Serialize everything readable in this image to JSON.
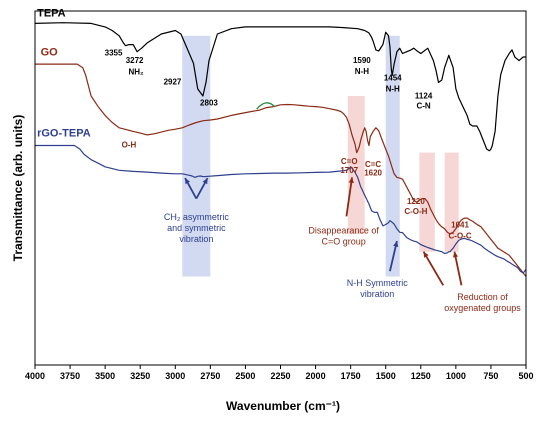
{
  "chart_data": {
    "type": "line",
    "xlabel": "Wavenumber (cm⁻¹)",
    "ylabel": "Transmittance (arb. units)",
    "xlim": [
      4000,
      500
    ],
    "x_ticks": [
      "4000",
      "3750",
      "3500",
      "3250",
      "3000",
      "2750",
      "2500",
      "2250",
      "2000",
      "1750",
      "1500",
      "1250",
      "1000",
      "750",
      "500"
    ],
    "ylim": [
      0,
      100
    ],
    "grid": false,
    "colors": {
      "tepa": "#000000",
      "go": "#8b2a14",
      "rgo": "#2e3f8f",
      "band_blue": "#c9d3ee",
      "band_red": "#f6cfcf"
    },
    "series": [
      {
        "name": "TEPA",
        "key": "tepa",
        "x": [
          4000,
          3800,
          3600,
          3500,
          3450,
          3400,
          3370,
          3355,
          3330,
          3300,
          3272,
          3240,
          3200,
          3100,
          3000,
          2960,
          2927,
          2900,
          2870,
          2840,
          2803,
          2780,
          2760,
          2700,
          2600,
          2500,
          2400,
          2300,
          2200,
          2100,
          2000,
          1900,
          1800,
          1700,
          1650,
          1620,
          1600,
          1590,
          1570,
          1550,
          1520,
          1500,
          1480,
          1470,
          1460,
          1454,
          1440,
          1420,
          1400,
          1380,
          1350,
          1320,
          1300,
          1280,
          1250,
          1200,
          1160,
          1140,
          1124,
          1100,
          1080,
          1050,
          1020,
          1000,
          980,
          950,
          920,
          900,
          880,
          850,
          830,
          800,
          780,
          760,
          750,
          740,
          720,
          700,
          680,
          650,
          620,
          600,
          580,
          550,
          520,
          500
        ],
        "y": [
          96.5,
          96.7,
          96.5,
          95.5,
          94.5,
          93,
          91,
          90.2,
          90.5,
          90.5,
          88.5,
          89.5,
          91,
          93.5,
          94.5,
          93.5,
          90.5,
          88,
          85.2,
          78,
          76,
          80,
          86,
          93.5,
          95,
          95.5,
          95.5,
          95.5,
          95.5,
          95.5,
          95.5,
          95.5,
          95.3,
          95,
          94.5,
          93.8,
          92.5,
          91.5,
          89,
          88.7,
          90.5,
          94,
          93,
          90,
          83.5,
          81.8,
          85,
          88.5,
          89.5,
          88,
          88.5,
          89,
          89.5,
          88.8,
          88,
          89.5,
          86,
          83,
          79.8,
          80.5,
          84,
          87.5,
          84,
          78,
          75.5,
          73,
          70.5,
          68,
          67.5,
          67.5,
          66,
          63,
          61,
          60.5,
          61,
          62,
          66,
          76,
          82,
          86,
          88,
          89,
          87,
          86,
          87,
          87
        ]
      },
      {
        "name": "GO",
        "key": "go",
        "x": [
          4000,
          3850,
          3750,
          3700,
          3680,
          3660,
          3640,
          3620,
          3600,
          3550,
          3500,
          3450,
          3400,
          3350,
          3300,
          3250,
          3200,
          3150,
          3100,
          3050,
          3000,
          2950,
          2900,
          2850,
          2800,
          2750,
          2700,
          2600,
          2500,
          2400,
          2350,
          2300,
          2250,
          2200,
          2150,
          2100,
          2050,
          2000,
          1950,
          1900,
          1850,
          1820,
          1800,
          1780,
          1760,
          1740,
          1720,
          1707,
          1690,
          1675,
          1660,
          1650,
          1640,
          1630,
          1620,
          1610,
          1590,
          1570,
          1550,
          1530,
          1500,
          1480,
          1460,
          1440,
          1420,
          1400,
          1380,
          1360,
          1340,
          1320,
          1300,
          1280,
          1260,
          1240,
          1220,
          1200,
          1180,
          1160,
          1140,
          1120,
          1100,
          1080,
          1060,
          1041,
          1020,
          1000,
          980,
          960,
          940,
          920,
          900,
          880,
          860,
          840,
          820,
          800,
          780,
          760,
          740,
          720,
          700,
          680,
          660,
          640,
          620,
          600,
          580,
          560,
          540,
          520,
          500
        ],
        "y": [
          85,
          85,
          85,
          85,
          84.5,
          84,
          82,
          79,
          76,
          73,
          70.5,
          68.5,
          67,
          66.5,
          66,
          65.5,
          65,
          65.3,
          65.8,
          66.3,
          66.6,
          67,
          67.8,
          68.5,
          69,
          69.2,
          69.5,
          70.5,
          71.3,
          72,
          72.7,
          73,
          73.5,
          73.6,
          73.5,
          73.3,
          73.1,
          73,
          72.8,
          72.4,
          72,
          71.6,
          71,
          70,
          68,
          65,
          62.5,
          60,
          61.5,
          64,
          66,
          67,
          66,
          63.5,
          62,
          64.5,
          66,
          67,
          66.2,
          64,
          61,
          59,
          56.5,
          54,
          53,
          52.8,
          52.5,
          51,
          49.5,
          48,
          46.5,
          46,
          46.6,
          47,
          47,
          46,
          44,
          42.5,
          41,
          39.8,
          39,
          38.5,
          37.5,
          37,
          37.5,
          38.5,
          40,
          41,
          41.5,
          41.5,
          41,
          40.6,
          40,
          39.5,
          39,
          38,
          37,
          36,
          35,
          34,
          33,
          32.5,
          32,
          31.5,
          31,
          30,
          29,
          28,
          27,
          26,
          25
        ]
      },
      {
        "name": "rGO-TEPA",
        "key": "rgo",
        "x": [
          4000,
          3850,
          3750,
          3720,
          3700,
          3680,
          3650,
          3600,
          3550,
          3500,
          3400,
          3300,
          3200,
          3100,
          3000,
          2950,
          2900,
          2880,
          2860,
          2840,
          2820,
          2800,
          2700,
          2600,
          2500,
          2400,
          2300,
          2200,
          2100,
          2000,
          1900,
          1850,
          1800,
          1780,
          1760,
          1750,
          1740,
          1720,
          1700,
          1680,
          1650,
          1620,
          1600,
          1580,
          1560,
          1540,
          1520,
          1500,
          1480,
          1470,
          1460,
          1440,
          1420,
          1400,
          1380,
          1350,
          1320,
          1300,
          1280,
          1250,
          1220,
          1200,
          1150,
          1100,
          1080,
          1060,
          1050,
          1041,
          1030,
          1020,
          1000,
          980,
          960,
          940,
          920,
          900,
          880,
          860,
          840,
          820,
          800,
          780,
          760,
          740,
          720,
          700,
          680,
          660,
          640,
          620,
          600,
          580,
          560,
          540,
          520,
          500
        ],
        "y": [
          62,
          62,
          62,
          62,
          61.5,
          61,
          59.5,
          58,
          57,
          56,
          55,
          54.7,
          54.5,
          54.2,
          54,
          54,
          53.6,
          53.4,
          53,
          53.3,
          53.4,
          53.2,
          53.5,
          53.8,
          54,
          54.1,
          54.2,
          54.2,
          54.3,
          54.4,
          54.5,
          54.7,
          54.9,
          55,
          55.5,
          56,
          55.6,
          54.5,
          53,
          50.5,
          48,
          45.5,
          43.5,
          43.1,
          43.1,
          41,
          39.3,
          39.7,
          40.2,
          40.8,
          40.5,
          39.8,
          38.5,
          37.5,
          37.4,
          36,
          35.3,
          35,
          34.8,
          34,
          33.5,
          33.2,
          32.5,
          32,
          31.5,
          31.7,
          32,
          32,
          32.5,
          33,
          34.2,
          35.2,
          35.6,
          35.8,
          35.5,
          35.3,
          35,
          34.6,
          34.2,
          33.8,
          33.1,
          32.5,
          32,
          31.5,
          31,
          30.6,
          30.3,
          30,
          29.5,
          29,
          28.5,
          28,
          27.5,
          26.5,
          26,
          27
        ]
      }
    ],
    "bands": [
      {
        "color_key": "band_blue",
        "from": 2950,
        "to": 2750,
        "y0": 25,
        "y1": 93
      },
      {
        "color_key": "band_red",
        "from": 1770,
        "to": 1650,
        "y0": 37,
        "y1": 76
      },
      {
        "color_key": "band_blue",
        "from": 1500,
        "to": 1400,
        "y0": 25,
        "y1": 93
      },
      {
        "color_key": "band_red",
        "from": 1260,
        "to": 1150,
        "y0": 32,
        "y1": 60
      },
      {
        "color_key": "band_red",
        "from": 1080,
        "to": 980,
        "y0": 32,
        "y1": 60
      }
    ],
    "series_labels": [
      {
        "text": "TEPA",
        "color_key": "tepa",
        "x": 3985,
        "y": 98.5
      },
      {
        "text": "GO",
        "color_key": "go",
        "x": 3960,
        "y": 87.5
      },
      {
        "text": "rGO-TEPA",
        "color_key": "rgo",
        "x": 3985,
        "y": 64.5
      }
    ],
    "annotations": [
      {
        "text": "3355",
        "color_key": "tepa",
        "x": 3440,
        "y": 87.5
      },
      {
        "text": "3272",
        "color_key": "tepa",
        "x": 3290,
        "y": 85.3
      },
      {
        "text": "NH₂",
        "color_key": "tepa",
        "x": 3280,
        "y": 82
      },
      {
        "text": "2927",
        "color_key": "tepa",
        "x": 3020,
        "y": 79.3
      },
      {
        "text": "2803",
        "color_key": "tepa",
        "x": 2760,
        "y": 73.3
      },
      {
        "text": "1590",
        "color_key": "tepa",
        "x": 1670,
        "y": 85.3
      },
      {
        "text": "N-H",
        "color_key": "tepa",
        "x": 1670,
        "y": 82.2
      },
      {
        "text": "1454",
        "color_key": "tepa",
        "x": 1450,
        "y": 80.3
      },
      {
        "text": "N-H",
        "color_key": "tepa",
        "x": 1450,
        "y": 77.3
      },
      {
        "text": "1124",
        "color_key": "tepa",
        "x": 1230,
        "y": 75.3
      },
      {
        "text": "C-N",
        "color_key": "tepa",
        "x": 1230,
        "y": 72.4
      },
      {
        "text": "O-H",
        "color_key": "go",
        "x": 3330,
        "y": 61.5
      },
      {
        "text": "C=O",
        "color_key": "go",
        "x": 1760,
        "y": 56.8
      },
      {
        "text": "1707",
        "color_key": "go",
        "x": 1760,
        "y": 54.3
      },
      {
        "text": "C=C",
        "color_key": "go",
        "x": 1590,
        "y": 56
      },
      {
        "text": "1620",
        "color_key": "go",
        "x": 1590,
        "y": 53.5
      },
      {
        "text": "1220",
        "color_key": "go",
        "x": 1285,
        "y": 45.5
      },
      {
        "text": "C-O-H",
        "color_key": "go",
        "x": 1285,
        "y": 42.6
      },
      {
        "text": "1041",
        "color_key": "go",
        "x": 970,
        "y": 38.8
      },
      {
        "text": "C-O-C",
        "color_key": "go",
        "x": 970,
        "y": 35.8
      }
    ],
    "notes": [
      {
        "lines": [
          "CH₂ asymmetric",
          "and symmetric",
          "vibration"
        ],
        "color_key": "rgo",
        "x": 2850,
        "y": 41
      },
      {
        "lines": [
          "Disappearance of",
          "C=O group"
        ],
        "color_key": "go",
        "x": 1800,
        "y": 37.2
      },
      {
        "lines": [
          "N-H Symmetric",
          "vibration"
        ],
        "color_key": "rgo",
        "x": 1560,
        "y": 22.3
      },
      {
        "lines": [
          "Reduction of",
          "oxygenated groups"
        ],
        "color_key": "go",
        "x": 810,
        "y": 18.3
      }
    ],
    "arrows": [
      {
        "color_key": "rgo",
        "from": [
          2850,
          47
        ],
        "to": [
          2930,
          52.8
        ]
      },
      {
        "color_key": "rgo",
        "from": [
          2850,
          47
        ],
        "to": [
          2770,
          52.8
        ]
      },
      {
        "color_key": "go",
        "from": [
          1780,
          42
        ],
        "to": [
          1740,
          53
        ]
      },
      {
        "color_key": "rgo",
        "from": [
          1470,
          26.5
        ],
        "to": [
          1420,
          35
        ]
      },
      {
        "color_key": "go",
        "from": [
          1090,
          22.5
        ],
        "to": [
          1230,
          32
        ]
      },
      {
        "color_key": "go",
        "from": [
          960,
          22.5
        ],
        "to": [
          1010,
          32
        ]
      }
    ]
  }
}
